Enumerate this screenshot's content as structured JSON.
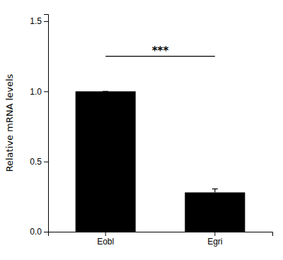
{
  "chart_data": {
    "type": "bar",
    "categories": [
      "Eobl",
      "Egri"
    ],
    "values": [
      1.0,
      0.28
    ],
    "errors": [
      0.0,
      0.025
    ],
    "color": "#000000",
    "ylabel": "Relative mRNA levels",
    "ylim": [
      0,
      1.55
    ],
    "yticks": [
      {
        "value": 0.0,
        "label": "0.0"
      },
      {
        "value": 0.5,
        "label": "0.5"
      },
      {
        "value": 1.0,
        "label": "1.0"
      },
      {
        "value": 1.5,
        "label": "1.5"
      }
    ],
    "grid": false,
    "annotations": [
      {
        "text": "***",
        "from": "Eobl",
        "to": "Egri",
        "y": 1.25
      }
    ]
  }
}
